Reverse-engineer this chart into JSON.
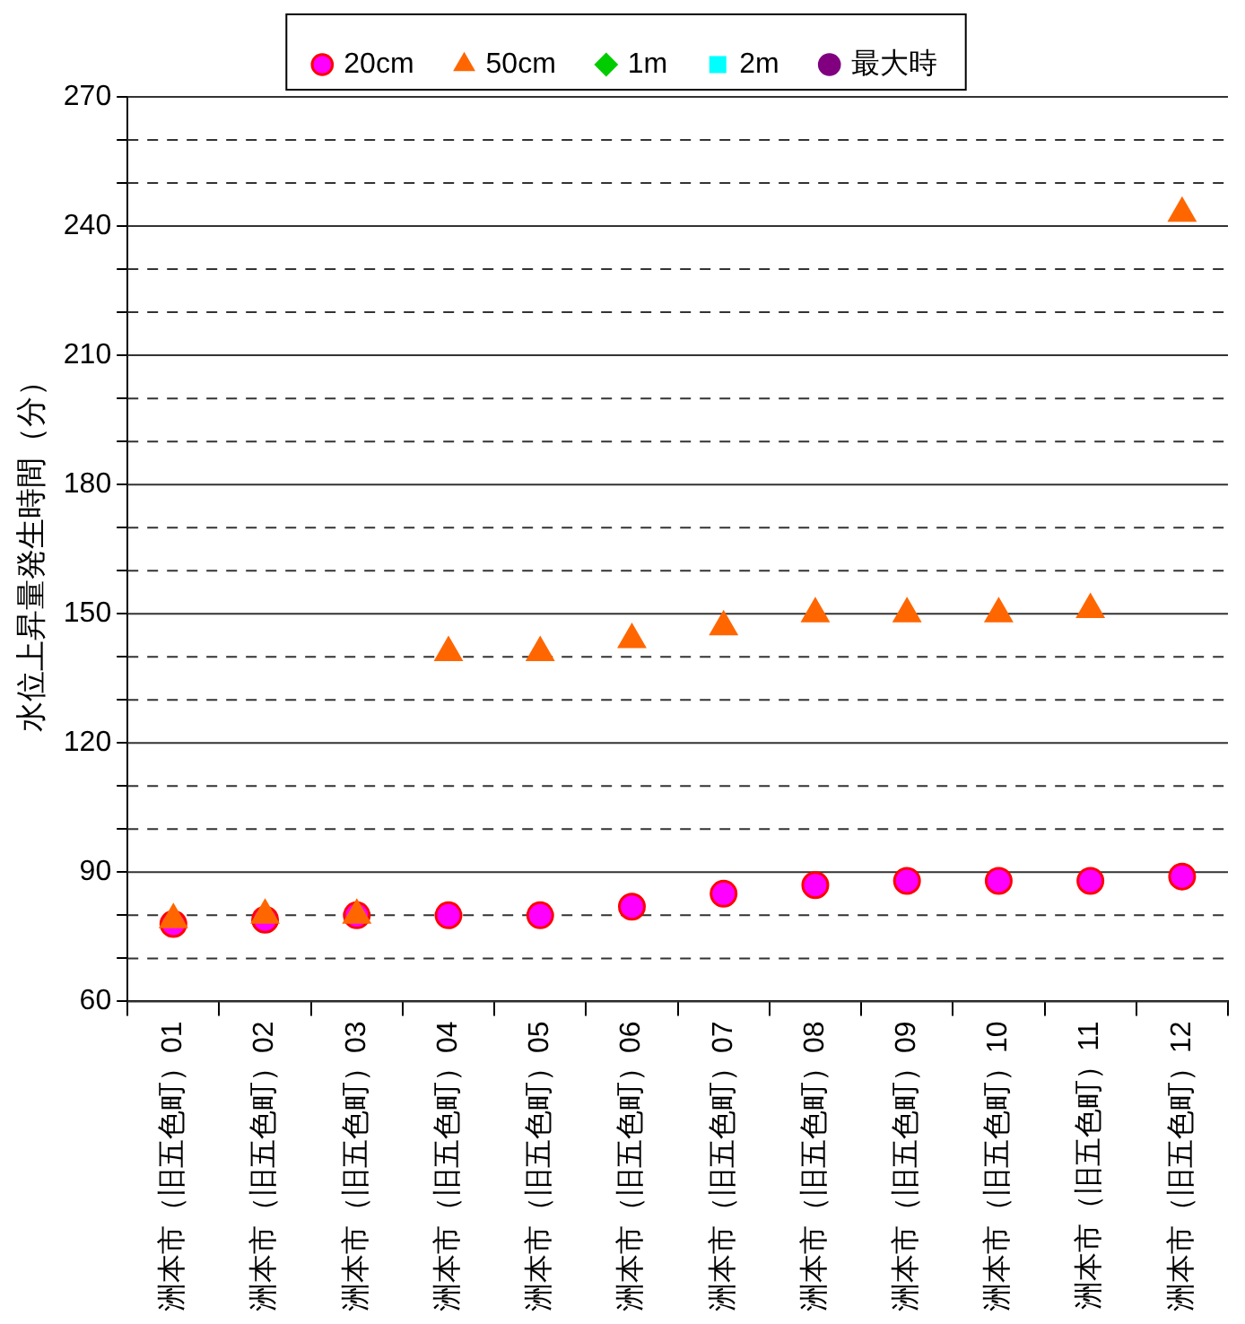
{
  "chart_data": {
    "type": "scatter",
    "ylabel": "水位上昇量発生時間（分）",
    "categories": [
      "洲本市（旧五色町）01",
      "洲本市（旧五色町）02",
      "洲本市（旧五色町）03",
      "洲本市（旧五色町）04",
      "洲本市（旧五色町）05",
      "洲本市（旧五色町）06",
      "洲本市（旧五色町）07",
      "洲本市（旧五色町）08",
      "洲本市（旧五色町）09",
      "洲本市（旧五色町）10",
      "洲本市（旧五色町）11",
      "洲本市（旧五色町）12"
    ],
    "series": [
      {
        "name": "20cm",
        "color": "#ff00ff",
        "marker": "circle",
        "values": [
          78,
          79,
          80,
          80,
          80,
          82,
          85,
          87,
          88,
          88,
          88,
          89
        ]
      },
      {
        "name": "50cm",
        "color": "#ff6600",
        "marker": "triangle",
        "values": [
          79,
          80,
          80,
          141,
          141,
          144,
          147,
          150,
          150,
          150,
          151,
          243
        ]
      },
      {
        "name": "1m",
        "color": "#00cc00",
        "marker": "diamond",
        "values": [
          null,
          null,
          null,
          null,
          null,
          null,
          null,
          null,
          null,
          null,
          null,
          null
        ]
      },
      {
        "name": "2m",
        "color": "#00ffff",
        "marker": "square",
        "values": [
          null,
          null,
          null,
          null,
          null,
          null,
          null,
          null,
          null,
          null,
          null,
          null
        ]
      },
      {
        "name": "最大時",
        "color": "#800080",
        "marker": "circle",
        "values": [
          null,
          null,
          null,
          null,
          null,
          null,
          null,
          null,
          null,
          null,
          null,
          null
        ]
      }
    ],
    "ylim": [
      60,
      270
    ],
    "yticks": [
      60,
      {
        "value": 70,
        "label": null
      },
      {
        "value": 80,
        "label": null
      },
      90,
      {
        "value": 100,
        "label": null
      },
      {
        "value": 110,
        "label": null
      },
      120,
      {
        "value": 130,
        "label": null
      },
      {
        "value": 140,
        "label": null
      },
      150,
      {
        "value": 160,
        "label": null
      },
      {
        "value": 170,
        "label": null
      },
      180,
      {
        "value": 190,
        "label": null
      },
      {
        "value": 200,
        "label": null
      },
      210,
      {
        "value": 220,
        "label": null
      },
      {
        "value": 230,
        "label": null
      },
      240,
      {
        "value": 250,
        "label": null
      },
      {
        "value": 260,
        "label": null
      },
      270
    ],
    "grid": "y",
    "legend": "top"
  }
}
